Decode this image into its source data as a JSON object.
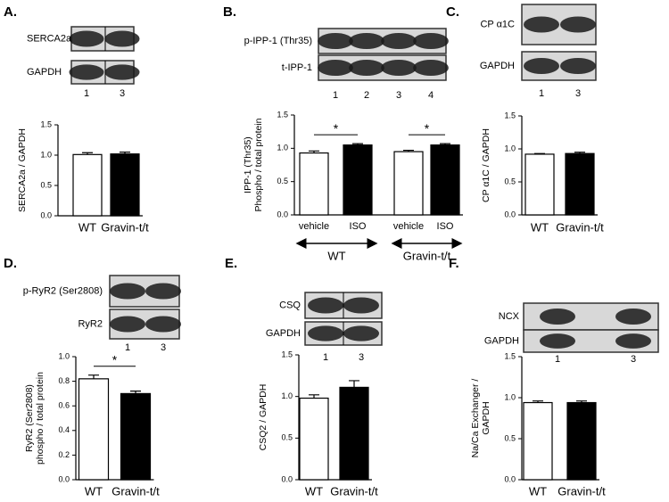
{
  "chart_data": [
    {
      "type": "bar",
      "panel": "A.",
      "blots": [
        "SERCA2a",
        "GAPDH"
      ],
      "lanes": [
        1,
        3
      ],
      "ylabel": [
        "SERCA2a / GAPDH"
      ],
      "categories": [
        "WT",
        "Gravin-t/t"
      ],
      "values": [
        1.01,
        1.02
      ],
      "errors": [
        0.03,
        0.03
      ],
      "colors": [
        "#ffffff",
        "#000000"
      ],
      "ylim": [
        0,
        1.5
      ],
      "yticks": [
        {
          "value": 0,
          "label": "0.0"
        },
        {
          "value": 0.5,
          "label": "0.5"
        },
        {
          "value": 1,
          "label": "1.0"
        },
        {
          "value": 1.5,
          "label": "1.5"
        }
      ]
    },
    {
      "type": "bar",
      "panel": "B.",
      "blots": [
        "p-IPP-1 (Thr35)",
        "t-IPP-1"
      ],
      "lanes": [
        1,
        2,
        3,
        4
      ],
      "ylabel": [
        "IPP-1 (Thr35)",
        "Phospho / total protein"
      ],
      "categories": [
        "vehicle",
        "ISO",
        "vehicle",
        "ISO"
      ],
      "values": [
        0.93,
        1.05,
        0.95,
        1.05
      ],
      "errors": [
        0.03,
        0.02,
        0.02,
        0.02
      ],
      "colors": [
        "#ffffff",
        "#000000",
        "#ffffff",
        "#000000"
      ],
      "groups": [
        "WT",
        "Gravin-t/t"
      ],
      "annotations": [
        "*",
        "*"
      ],
      "ylim": [
        0,
        1.5
      ],
      "yticks": [
        {
          "value": 0,
          "label": "0.0"
        },
        {
          "value": 0.5,
          "label": "0.5"
        },
        {
          "value": 1,
          "label": "1.0"
        },
        {
          "value": 1.5,
          "label": "1.5"
        }
      ]
    },
    {
      "type": "bar",
      "panel": "C.",
      "blots": [
        "CP α1C",
        "GAPDH"
      ],
      "lanes": [
        1,
        3
      ],
      "ylabel": [
        "CP α1C / GAPDH"
      ],
      "categories": [
        "WT",
        "Gravin-t/t"
      ],
      "values": [
        0.92,
        0.93
      ],
      "errors": [
        0.01,
        0.02
      ],
      "colors": [
        "#ffffff",
        "#000000"
      ],
      "ylim": [
        0,
        1.5
      ],
      "yticks": [
        {
          "value": 0,
          "label": "0.0"
        },
        {
          "value": 0.5,
          "label": "0.5"
        },
        {
          "value": 1,
          "label": "1.0"
        },
        {
          "value": 1.5,
          "label": "1.5"
        }
      ]
    },
    {
      "type": "bar",
      "panel": "D.",
      "blots": [
        "p-RyR2 (Ser2808)",
        "RyR2"
      ],
      "lanes": [
        1,
        3
      ],
      "ylabel": [
        "RyR2 (Ser2808)",
        "phospho / total protein"
      ],
      "categories": [
        "WT",
        "Gravin-t/t"
      ],
      "values": [
        0.82,
        0.7
      ],
      "errors": [
        0.03,
        0.02
      ],
      "colors": [
        "#ffffff",
        "#000000"
      ],
      "annotations": [
        "*"
      ],
      "ylim": [
        0,
        1
      ],
      "yticks": [
        {
          "value": 0,
          "label": "0.0"
        },
        {
          "value": 0.2,
          "label": "0.2"
        },
        {
          "value": 0.4,
          "label": "0.4"
        },
        {
          "value": 0.6,
          "label": "0.6"
        },
        {
          "value": 0.8,
          "label": "0.8"
        },
        {
          "value": 1,
          "label": "1.0"
        }
      ]
    },
    {
      "type": "bar",
      "panel": "E.",
      "blots": [
        "CSQ",
        "GAPDH"
      ],
      "lanes": [
        1,
        3
      ],
      "ylabel": [
        "CSQ2 / GAPDH"
      ],
      "categories": [
        "WT",
        "Gravin-t/t"
      ],
      "values": [
        0.98,
        1.11
      ],
      "errors": [
        0.04,
        0.08
      ],
      "colors": [
        "#ffffff",
        "#000000"
      ],
      "ylim": [
        0,
        1.5
      ],
      "yticks": [
        {
          "value": 0,
          "label": "0.0"
        },
        {
          "value": 0.5,
          "label": "0.5"
        },
        {
          "value": 1,
          "label": "1.0"
        },
        {
          "value": 1.5,
          "label": "1.5"
        }
      ]
    },
    {
      "type": "bar",
      "panel": "F.",
      "blots": [
        "NCX",
        "GAPDH"
      ],
      "lanes": [
        1,
        3
      ],
      "ylabel": [
        "Na/Ca Exchanger /",
        "GAPDH"
      ],
      "categories": [
        "WT",
        "Gravin-t/t"
      ],
      "values": [
        0.94,
        0.94
      ],
      "errors": [
        0.02,
        0.02
      ],
      "colors": [
        "#ffffff",
        "#000000"
      ],
      "ylim": [
        0,
        1.5
      ],
      "yticks": [
        {
          "value": 0,
          "label": "0.0"
        },
        {
          "value": 0.5,
          "label": "0.5"
        },
        {
          "value": 1,
          "label": "1.0"
        },
        {
          "value": 1.5,
          "label": "1.5"
        }
      ]
    }
  ]
}
